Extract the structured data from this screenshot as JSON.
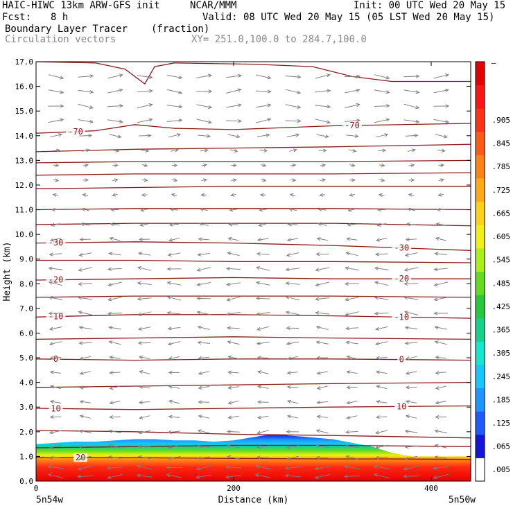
{
  "header": {
    "model": "HAIC-HIWC 13km ARW-GFS init",
    "org": "NCAR/MMM",
    "init": "Init: 00 UTC Wed 20 May 15",
    "fcst_label": "Fcst:",
    "fcst_value": "8 h",
    "valid": "Valid: 08 UTC Wed 20 May 15 (05 LST Wed 20 May 15)",
    "field_name": "Boundary Layer Tracer",
    "field_units": "(fraction)",
    "vector_name": "Circulation vectors",
    "xy": "XY= 251.0,100.0 to 284.7,100.0"
  },
  "colors": {
    "contour": "#8b1a1a",
    "vector": "#808080",
    "palette": [
      "#ffffff",
      "#1414dc",
      "#1e5aff",
      "#1e96ff",
      "#14c8ff",
      "#14e6d2",
      "#14d28c",
      "#28c83c",
      "#64dc1e",
      "#aaf014",
      "#f0f014",
      "#ffd214",
      "#ffaa14",
      "#ff8214",
      "#ff5a14",
      "#ff3214",
      "#ff1414",
      "#e60000"
    ]
  },
  "chart_data": {
    "type": "cross-section",
    "xlabel": "Distance (km)",
    "ylabel": "Height (km)",
    "xlim": [
      0,
      440
    ],
    "ylim": [
      0,
      17
    ],
    "x_ticks": [
      {
        "value": 0,
        "label": "0"
      },
      {
        "value": 200,
        "label": "200"
      },
      {
        "value": 400,
        "label": "400"
      }
    ],
    "y_ticks": [
      {
        "value": 0,
        "label": "0.0"
      },
      {
        "value": 1,
        "label": "1.0"
      },
      {
        "value": 2,
        "label": "2.0"
      },
      {
        "value": 3,
        "label": "3.0"
      },
      {
        "value": 4,
        "label": "4.0"
      },
      {
        "value": 5,
        "label": "5.0"
      },
      {
        "value": 6,
        "label": "6.0"
      },
      {
        "value": 7,
        "label": "7.0"
      },
      {
        "value": 8,
        "label": "8.0"
      },
      {
        "value": 9,
        "label": "9.0"
      },
      {
        "value": 10,
        "label": "10.0"
      },
      {
        "value": 11,
        "label": "11.0"
      },
      {
        "value": 12,
        "label": "12.0"
      },
      {
        "value": 13,
        "label": "13.0"
      },
      {
        "value": 14,
        "label": "14.0"
      },
      {
        "value": 15,
        "label": "15.0"
      },
      {
        "value": 16,
        "label": "16.0"
      },
      {
        "value": 17,
        "label": "17.0"
      }
    ],
    "endpoints": {
      "left": "5n54w",
      "right": "5n50w"
    },
    "colorbar_labels": [
      ".005",
      ".065",
      ".125",
      ".185",
      ".245",
      ".305",
      ".365",
      ".425",
      ".485",
      ".545",
      ".605",
      ".665",
      ".725",
      ".785",
      ".845",
      ".905"
    ],
    "colorbar_top_label": "–",
    "tracer_top_km": [
      [
        0,
        1.5
      ],
      [
        20,
        1.55
      ],
      [
        40,
        1.6
      ],
      [
        60,
        1.6
      ],
      [
        80,
        1.65
      ],
      [
        100,
        1.7
      ],
      [
        120,
        1.7
      ],
      [
        140,
        1.65
      ],
      [
        160,
        1.65
      ],
      [
        180,
        1.6
      ],
      [
        200,
        1.65
      ],
      [
        215,
        1.75
      ],
      [
        230,
        1.85
      ],
      [
        245,
        1.9
      ],
      [
        255,
        1.85
      ],
      [
        270,
        1.8
      ],
      [
        285,
        1.75
      ],
      [
        300,
        1.7
      ],
      [
        320,
        1.55
      ],
      [
        340,
        1.4
      ],
      [
        360,
        1.15
      ],
      [
        380,
        1.0
      ],
      [
        400,
        1.0
      ],
      [
        440,
        1.0
      ]
    ],
    "temperature_contours": [
      {
        "label": "20",
        "label_x": [
          45
        ],
        "points": [
          [
            0,
            0.95
          ],
          [
            100,
            0.95
          ],
          [
            200,
            0.92
          ],
          [
            300,
            0.9
          ],
          [
            360,
            0.9
          ],
          [
            440,
            0.88
          ]
        ]
      },
      {
        "label": "",
        "label_x": [],
        "points": [
          [
            0,
            1.35
          ],
          [
            100,
            1.4
          ],
          [
            200,
            1.45
          ],
          [
            300,
            1.45
          ],
          [
            440,
            1.4
          ]
        ]
      },
      {
        "label": "",
        "label_x": [],
        "points": [
          [
            0,
            2.05
          ],
          [
            100,
            2.0
          ],
          [
            200,
            1.9
          ],
          [
            300,
            1.85
          ],
          [
            440,
            1.75
          ]
        ]
      },
      {
        "label": "10",
        "label_x": [
          20,
          370
        ],
        "points": [
          [
            0,
            2.95
          ],
          [
            100,
            2.9
          ],
          [
            200,
            2.95
          ],
          [
            300,
            3.0
          ],
          [
            440,
            3.05
          ]
        ]
      },
      {
        "label": "",
        "label_x": [],
        "points": [
          [
            0,
            3.8
          ],
          [
            100,
            3.85
          ],
          [
            200,
            3.9
          ],
          [
            300,
            3.95
          ],
          [
            440,
            4.0
          ]
        ]
      },
      {
        "label": "0",
        "label_x": [
          20,
          370
        ],
        "points": [
          [
            0,
            4.95
          ],
          [
            100,
            4.9
          ],
          [
            200,
            4.95
          ],
          [
            300,
            4.95
          ],
          [
            440,
            4.9
          ]
        ]
      },
      {
        "label": "",
        "label_x": [],
        "points": [
          [
            0,
            5.75
          ],
          [
            100,
            5.8
          ],
          [
            200,
            5.85
          ],
          [
            300,
            5.8
          ],
          [
            440,
            5.75
          ]
        ]
      },
      {
        "label": "-10",
        "label_x": [
          20,
          370
        ],
        "points": [
          [
            0,
            6.65
          ],
          [
            100,
            6.75
          ],
          [
            200,
            6.75
          ],
          [
            300,
            6.7
          ],
          [
            440,
            6.6
          ]
        ]
      },
      {
        "label": "",
        "label_x": [],
        "points": [
          [
            0,
            7.45
          ],
          [
            100,
            7.5
          ],
          [
            200,
            7.5
          ],
          [
            300,
            7.5
          ],
          [
            440,
            7.45
          ]
        ]
      },
      {
        "label": "-20",
        "label_x": [
          20,
          370
        ],
        "points": [
          [
            0,
            8.15
          ],
          [
            100,
            8.2
          ],
          [
            200,
            8.25
          ],
          [
            300,
            8.2
          ],
          [
            440,
            8.2
          ]
        ]
      },
      {
        "label": "",
        "label_x": [],
        "points": [
          [
            0,
            8.95
          ],
          [
            100,
            8.95
          ],
          [
            200,
            8.9
          ],
          [
            300,
            8.9
          ],
          [
            440,
            8.85
          ]
        ]
      },
      {
        "label": "-30",
        "label_x": [
          20,
          370
        ],
        "points": [
          [
            0,
            9.65
          ],
          [
            100,
            9.7
          ],
          [
            200,
            9.65
          ],
          [
            300,
            9.55
          ],
          [
            440,
            9.35
          ]
        ]
      },
      {
        "label": "",
        "label_x": [],
        "points": [
          [
            0,
            10.4
          ],
          [
            100,
            10.45
          ],
          [
            200,
            10.45
          ],
          [
            300,
            10.45
          ],
          [
            440,
            10.35
          ]
        ]
      },
      {
        "label": "",
        "label_x": [],
        "points": [
          [
            0,
            11.0
          ],
          [
            100,
            11.05
          ],
          [
            200,
            11.05
          ],
          [
            300,
            11.05
          ],
          [
            440,
            11.0
          ]
        ]
      },
      {
        "label": "",
        "label_x": [],
        "points": [
          [
            0,
            11.85
          ],
          [
            100,
            11.9
          ],
          [
            200,
            11.95
          ],
          [
            300,
            11.95
          ],
          [
            440,
            11.95
          ]
        ]
      },
      {
        "label": "",
        "label_x": [],
        "points": [
          [
            0,
            12.4
          ],
          [
            100,
            12.45
          ],
          [
            200,
            12.45
          ],
          [
            300,
            12.45
          ],
          [
            440,
            12.5
          ]
        ]
      },
      {
        "label": "",
        "label_x": [],
        "points": [
          [
            0,
            12.9
          ],
          [
            100,
            12.95
          ],
          [
            200,
            12.95
          ],
          [
            300,
            12.95
          ],
          [
            440,
            13.0
          ]
        ]
      },
      {
        "label": "",
        "label_x": [],
        "points": [
          [
            0,
            13.35
          ],
          [
            100,
            13.45
          ],
          [
            200,
            13.5
          ],
          [
            300,
            13.55
          ],
          [
            440,
            13.65
          ]
        ]
      },
      {
        "label": "-70",
        "label_x": [
          40,
          320
        ],
        "points": [
          [
            0,
            14.1
          ],
          [
            60,
            14.2
          ],
          [
            100,
            14.45
          ],
          [
            140,
            14.3
          ],
          [
            200,
            14.25
          ],
          [
            300,
            14.4
          ],
          [
            440,
            14.5
          ]
        ]
      },
      {
        "label": "",
        "label_x": [],
        "points": [
          [
            0,
            17.0
          ],
          [
            60,
            16.95
          ],
          [
            90,
            16.7
          ],
          [
            110,
            16.1
          ],
          [
            120,
            16.8
          ],
          [
            140,
            16.95
          ],
          [
            220,
            16.9
          ],
          [
            280,
            16.8
          ],
          [
            320,
            16.4
          ],
          [
            360,
            16.2
          ],
          [
            440,
            16.2
          ]
        ]
      }
    ],
    "wind": {
      "description_free": true,
      "levels_km": [
        0.2,
        0.55,
        0.95,
        1.4,
        2.0,
        2.6,
        3.2,
        3.8,
        4.4,
        5.0,
        5.6,
        6.2,
        6.8,
        7.4,
        8.0,
        8.6,
        9.2,
        9.8,
        10.4,
        11.0,
        11.6,
        12.2,
        12.8,
        13.4,
        14.0,
        14.6,
        15.2,
        15.8,
        16.4
      ],
      "x_km": [
        20,
        50,
        80,
        110,
        140,
        170,
        200,
        230,
        260,
        290,
        320,
        350,
        380,
        410
      ],
      "u_by_level": [
        -1,
        -1,
        -0.8,
        -0.8,
        -0.8,
        -0.7,
        -0.7,
        -0.7,
        -0.7,
        -0.7,
        -0.8,
        -0.8,
        -0.9,
        -0.9,
        -0.9,
        -0.9,
        -0.8,
        -0.7,
        -0.6,
        -0.5,
        -0.3,
        0.2,
        0.3,
        0.5,
        0.8,
        1.0,
        1.0,
        1.0,
        1.0
      ]
    }
  }
}
